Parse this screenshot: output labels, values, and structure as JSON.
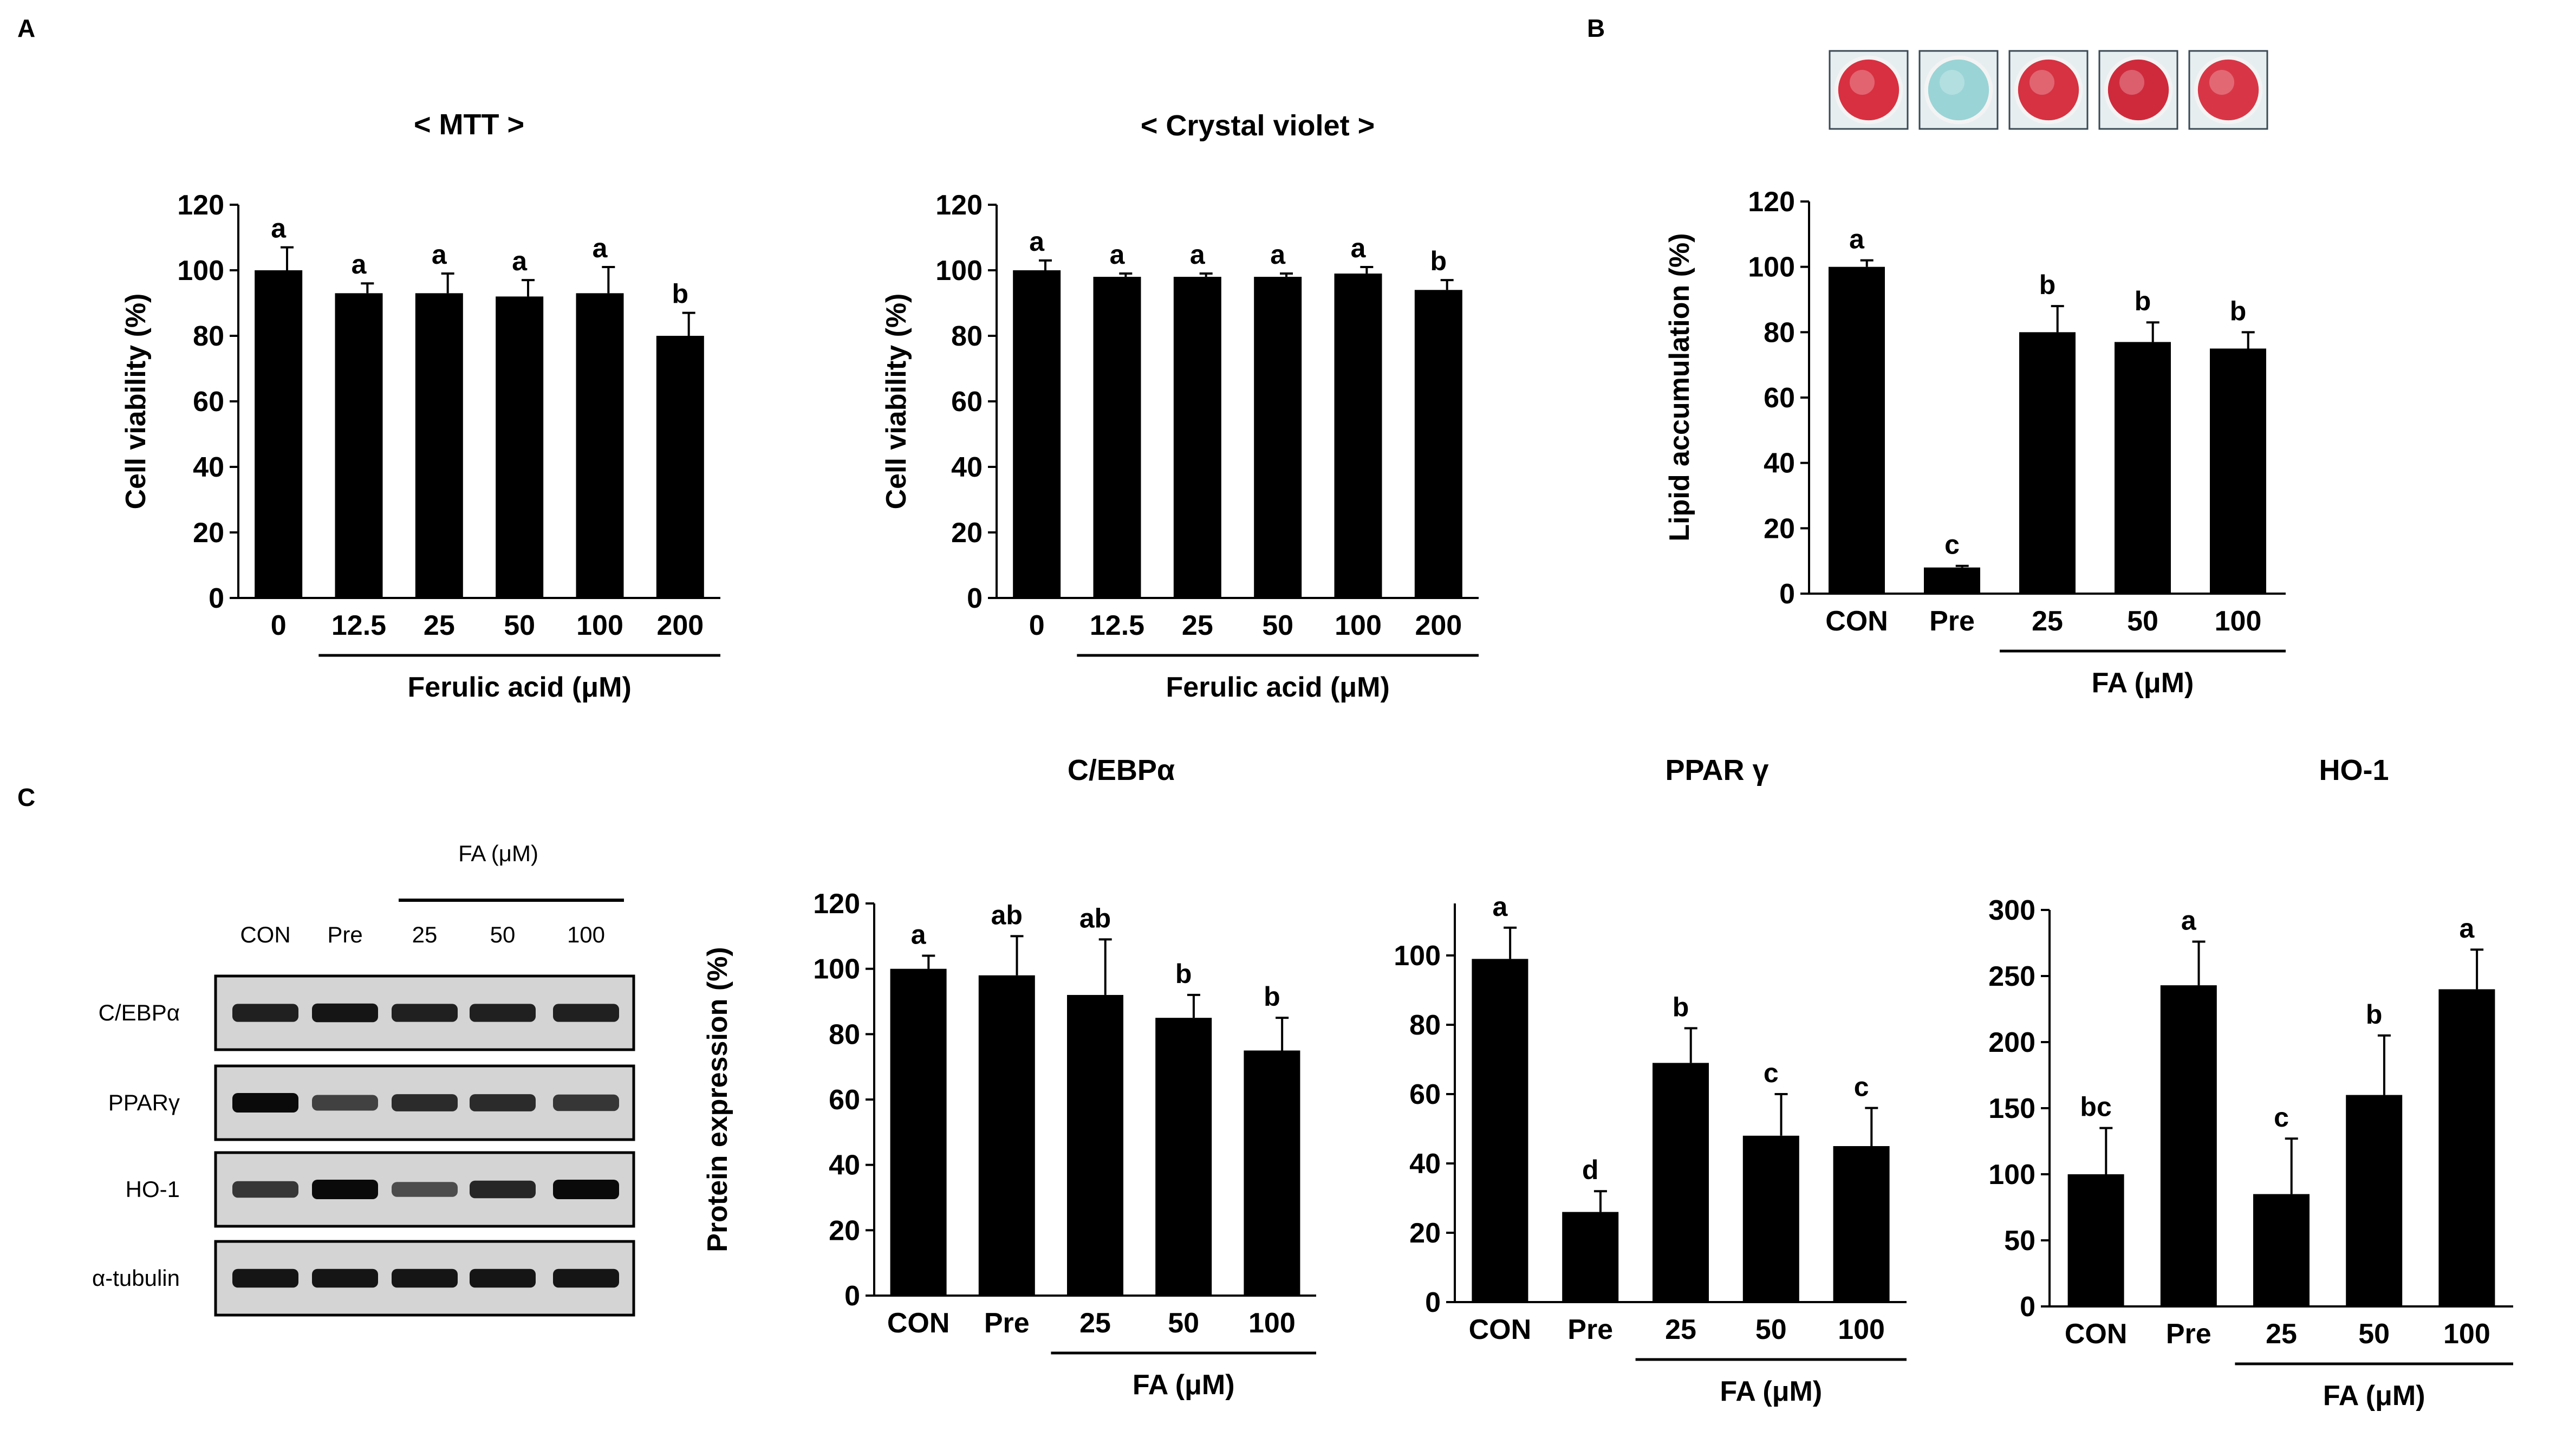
{
  "panel_labels": [
    "A",
    "B",
    "C"
  ],
  "wells": [
    {
      "name": "CON",
      "color": "#d83040"
    },
    {
      "name": "Pre",
      "color": "#9ad4d6"
    },
    {
      "name": "25",
      "color": "#d63242"
    },
    {
      "name": "50",
      "color": "#cf2a3c"
    },
    {
      "name": "100",
      "color": "#d83646"
    }
  ],
  "blot": {
    "group_label": "FA (μM)",
    "lanes": [
      "CON",
      "Pre",
      "25",
      "50",
      "100"
    ],
    "rows": [
      {
        "label": "C/EBPα",
        "intensities": [
          0.8,
          0.9,
          0.8,
          0.8,
          0.8
        ]
      },
      {
        "label": "PPARγ",
        "intensities": [
          1.0,
          0.5,
          0.7,
          0.7,
          0.6
        ]
      },
      {
        "label": "HO-1",
        "intensities": [
          0.6,
          1.0,
          0.4,
          0.75,
          1.0
        ]
      },
      {
        "label": "α-tubulin",
        "intensities": [
          0.9,
          0.9,
          0.9,
          0.9,
          0.9
        ]
      }
    ]
  },
  "chart_data": [
    {
      "id": "mtt",
      "type": "bar",
      "title": "< MTT >",
      "categories": [
        "0",
        "12.5",
        "25",
        "50",
        "100",
        "200"
      ],
      "values": [
        100,
        93,
        93,
        92,
        93,
        80
      ],
      "errors": [
        7,
        3,
        6,
        5,
        8,
        7
      ],
      "letters": [
        "a",
        "a",
        "a",
        "a",
        "a",
        "b"
      ],
      "ylabel": "Cell viability (%)",
      "xlabel": "Ferulic acid (μM)",
      "ylim": [
        0,
        120
      ],
      "yticks": [
        0,
        20,
        40,
        60,
        80,
        100,
        120
      ],
      "group_start": 1,
      "group_end": 5
    },
    {
      "id": "crystal",
      "type": "bar",
      "title": "< Crystal  violet >",
      "categories": [
        "0",
        "12.5",
        "25",
        "50",
        "100",
        "200"
      ],
      "values": [
        100,
        98,
        98,
        98,
        99,
        94
      ],
      "errors": [
        3,
        1,
        1,
        1,
        2,
        3
      ],
      "letters": [
        "a",
        "a",
        "a",
        "a",
        "a",
        "b"
      ],
      "ylabel": "Cell viability (%)",
      "xlabel": "Ferulic acid (μM)",
      "ylim": [
        0,
        120
      ],
      "yticks": [
        0,
        20,
        40,
        60,
        80,
        100,
        120
      ],
      "group_start": 1,
      "group_end": 5
    },
    {
      "id": "lipid",
      "type": "bar",
      "title": "",
      "categories": [
        "CON",
        "Pre",
        "25",
        "50",
        "100"
      ],
      "values": [
        100,
        8,
        80,
        77,
        75
      ],
      "errors": [
        2,
        0.5,
        8,
        6,
        5
      ],
      "letters": [
        "a",
        "c",
        "b",
        "b",
        "b"
      ],
      "ylabel": "Lipid accumulation (%)",
      "xlabel": "FA (μM)",
      "ylim": [
        0,
        120
      ],
      "yticks": [
        0,
        20,
        40,
        60,
        80,
        100,
        120
      ],
      "group_start": 2,
      "group_end": 4
    },
    {
      "id": "cebpa",
      "type": "bar",
      "title": "C/EBPα",
      "categories": [
        "CON",
        "Pre",
        "25",
        "50",
        "100"
      ],
      "values": [
        100,
        98,
        92,
        85,
        75
      ],
      "errors": [
        4,
        12,
        17,
        7,
        10
      ],
      "letters": [
        "a",
        "ab",
        "ab",
        "b",
        "b"
      ],
      "ylabel": "Protein expression  (%)",
      "xlabel": "FA (μM)",
      "ylim": [
        0,
        120
      ],
      "yticks": [
        0,
        20,
        40,
        60,
        80,
        100,
        120
      ],
      "group_start": 2,
      "group_end": 4
    },
    {
      "id": "ppar",
      "type": "bar",
      "title": "PPAR γ",
      "categories": [
        "CON",
        "Pre",
        "25",
        "50",
        "100"
      ],
      "values": [
        99,
        26,
        69,
        48,
        45
      ],
      "errors": [
        9,
        6,
        10,
        12,
        11
      ],
      "letters": [
        "a",
        "d",
        "b",
        "c",
        "c"
      ],
      "ylabel": "",
      "xlabel": "FA (μM)",
      "ylim": [
        0,
        115
      ],
      "yticks": [
        0,
        20,
        40,
        60,
        80,
        100
      ],
      "group_start": 2,
      "group_end": 4
    },
    {
      "id": "ho1",
      "type": "bar",
      "title": "HO-1",
      "categories": [
        "CON",
        "Pre",
        "25",
        "50",
        "100"
      ],
      "values": [
        100,
        243,
        85,
        160,
        240
      ],
      "errors": [
        35,
        33,
        42,
        45,
        30
      ],
      "letters": [
        "bc",
        "a",
        "c",
        "b",
        "a"
      ],
      "ylabel": "",
      "xlabel": "FA (μM)",
      "ylim": [
        0,
        300
      ],
      "yticks": [
        0,
        50,
        100,
        150,
        200,
        250,
        300
      ],
      "group_start": 2,
      "group_end": 4
    }
  ]
}
